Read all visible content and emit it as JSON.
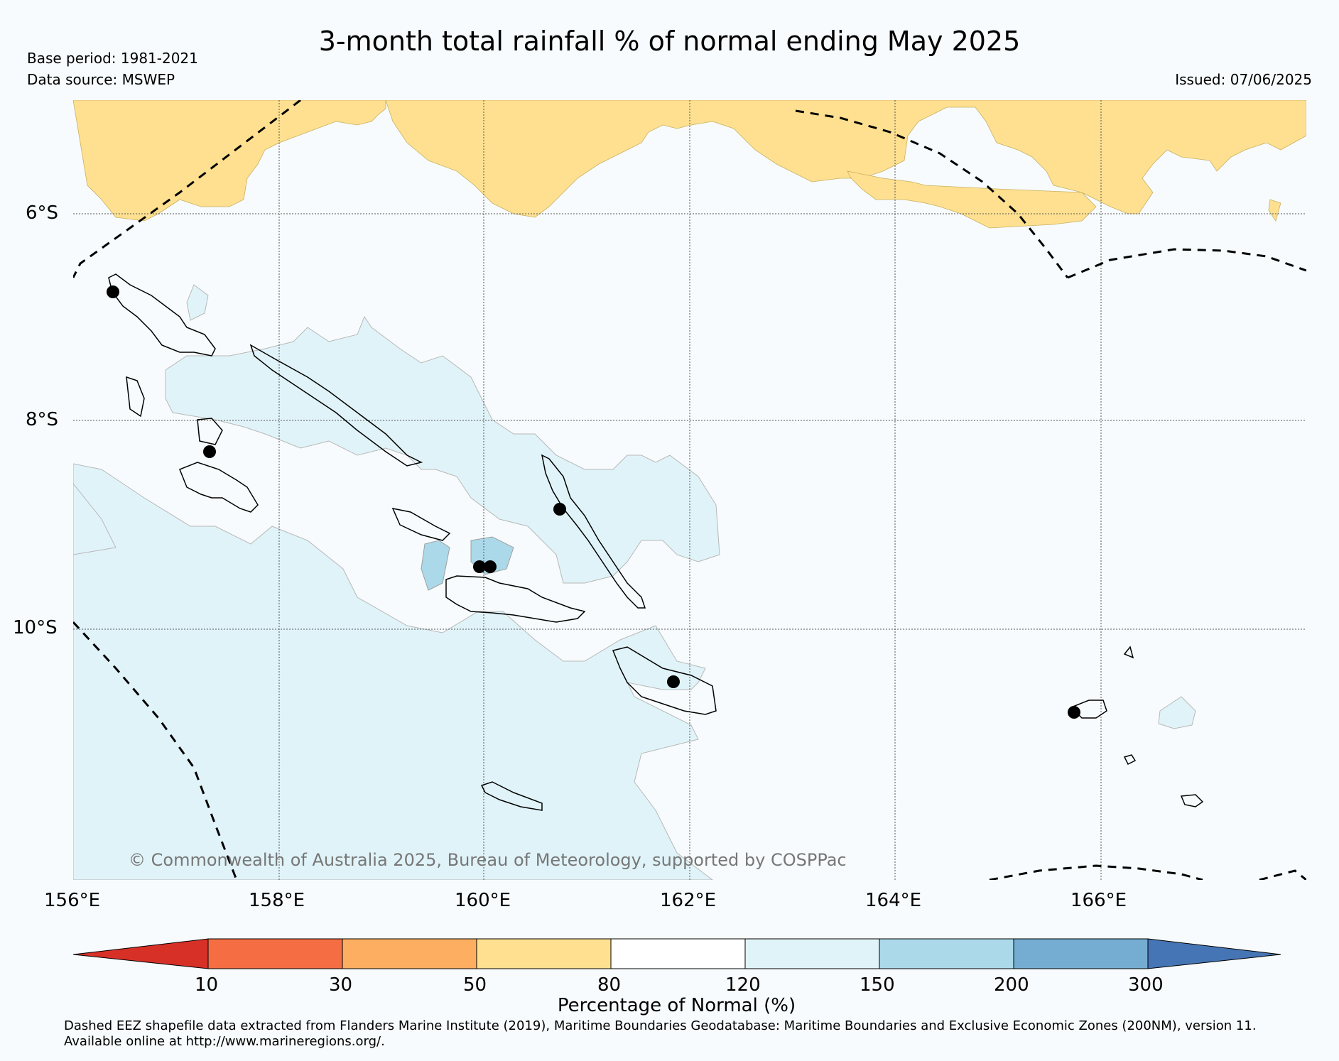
{
  "title": "3-month total rainfall % of normal ending May 2025",
  "base_period": "Base period: 1981-2021",
  "data_source": "Data source: MSWEP",
  "issued": "Issued: 07/06/2025",
  "copyright": "© Commonwealth of Australia 2025, Bureau of Meteorology, supported by COSPPac",
  "longitude_labels": [
    "156°E",
    "158°E",
    "160°E",
    "162°E",
    "164°E",
    "166°E"
  ],
  "latitude_labels": [
    "6°S",
    "8°S",
    "10°S"
  ],
  "colorbar": {
    "ticks": [
      "10",
      "30",
      "50",
      "80",
      "120",
      "150",
      "200",
      "300"
    ],
    "label": "Percentage of Normal (%)",
    "colors": [
      "#d73027",
      "#f46d43",
      "#fdae61",
      "#fee090",
      "#ffffff",
      "#e0f3f8",
      "#abd9e9",
      "#74add1",
      "#4575b4"
    ]
  },
  "footnote_line1": "Dashed EEZ shapefile data extracted from Flanders Marine Institute (2019), Maritime Boundaries Geodatabase: Maritime Boundaries and Exclusive Economic Zones (200NM), version 11.",
  "footnote_line2": "Available online at http://www.marineregions.org/."
}
